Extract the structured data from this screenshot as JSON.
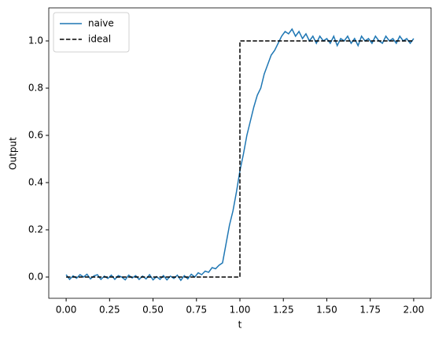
{
  "chart_data": {
    "type": "line",
    "xlabel": "t",
    "ylabel": "Output",
    "xlim": [
      -0.1,
      2.1
    ],
    "ylim": [
      -0.09,
      1.14
    ],
    "xticks": [
      {
        "value": 0,
        "label": "0.00"
      },
      {
        "value": 0.25,
        "label": "0.25"
      },
      {
        "value": 0.5,
        "label": "0.50"
      },
      {
        "value": 0.75,
        "label": "0.75"
      },
      {
        "value": 1,
        "label": "1.00"
      },
      {
        "value": 1.25,
        "label": "1.25"
      },
      {
        "value": 1.5,
        "label": "1.50"
      },
      {
        "value": 1.75,
        "label": "1.75"
      },
      {
        "value": 2,
        "label": "2.00"
      }
    ],
    "yticks": [
      {
        "value": 0,
        "label": "0.0"
      },
      {
        "value": 0.2,
        "label": "0.2"
      },
      {
        "value": 0.4,
        "label": "0.4"
      },
      {
        "value": 0.6,
        "label": "0.6"
      },
      {
        "value": 0.8,
        "label": "0.8"
      },
      {
        "value": 1,
        "label": "1.0"
      }
    ],
    "grid": false,
    "legend": "upper left",
    "series": [
      {
        "name": "naive",
        "color": "#1f77b4",
        "linestyle": "solid",
        "x": [
          0,
          0.02,
          0.04,
          0.06,
          0.08,
          0.1,
          0.12,
          0.14,
          0.16,
          0.18,
          0.2,
          0.22,
          0.24,
          0.26,
          0.28,
          0.3,
          0.32,
          0.34,
          0.36,
          0.38,
          0.4,
          0.42,
          0.44,
          0.46,
          0.48,
          0.5,
          0.52,
          0.54,
          0.56,
          0.58,
          0.6,
          0.62,
          0.64,
          0.66,
          0.68,
          0.7,
          0.72,
          0.74,
          0.76,
          0.78,
          0.8,
          0.82,
          0.84,
          0.86,
          0.88,
          0.9,
          0.92,
          0.94,
          0.96,
          0.98,
          1,
          1.02,
          1.04,
          1.06,
          1.08,
          1.1,
          1.12,
          1.14,
          1.16,
          1.18,
          1.2,
          1.22,
          1.24,
          1.26,
          1.28,
          1.3,
          1.32,
          1.34,
          1.36,
          1.38,
          1.4,
          1.42,
          1.44,
          1.46,
          1.48,
          1.5,
          1.52,
          1.54,
          1.56,
          1.58,
          1.6,
          1.62,
          1.64,
          1.66,
          1.68,
          1.7,
          1.72,
          1.74,
          1.76,
          1.78,
          1.8,
          1.82,
          1.84,
          1.86,
          1.88,
          1.9,
          1.92,
          1.94,
          1.96,
          1.98,
          2
        ],
        "values": [
          0.01,
          -0.01,
          0.005,
          -0.005,
          0.01,
          0,
          0.012,
          -0.008,
          0.005,
          0.01,
          -0.01,
          0.004,
          -0.006,
          0.008,
          -0.01,
          0.006,
          0,
          -0.012,
          0.008,
          -0.004,
          0.006,
          -0.01,
          0.004,
          -0.008,
          0.01,
          -0.012,
          0.002,
          -0.01,
          0.006,
          -0.012,
          0.004,
          -0.006,
          0.008,
          -0.014,
          0.006,
          -0.008,
          0.012,
          0,
          0.018,
          0.01,
          0.025,
          0.02,
          0.04,
          0.035,
          0.05,
          0.06,
          0.14,
          0.22,
          0.28,
          0.36,
          0.45,
          0.52,
          0.6,
          0.66,
          0.72,
          0.77,
          0.8,
          0.86,
          0.9,
          0.94,
          0.96,
          0.99,
          1.02,
          1.04,
          1.03,
          1.05,
          1.02,
          1.04,
          1.01,
          1.03,
          1,
          1.02,
          0.99,
          1.02,
          1,
          1.01,
          0.99,
          1.02,
          0.98,
          1.01,
          1,
          1.02,
          0.99,
          1.01,
          0.98,
          1.02,
          1,
          1.01,
          0.99,
          1.02,
          1,
          0.99,
          1.02,
          1,
          1.01,
          0.99,
          1.02,
          1,
          1.01,
          0.99,
          1.01
        ]
      },
      {
        "name": "ideal",
        "color": "#000000",
        "linestyle": "dashed",
        "x": [
          0,
          1,
          1,
          2
        ],
        "values": [
          0,
          0,
          1,
          1
        ]
      }
    ]
  }
}
